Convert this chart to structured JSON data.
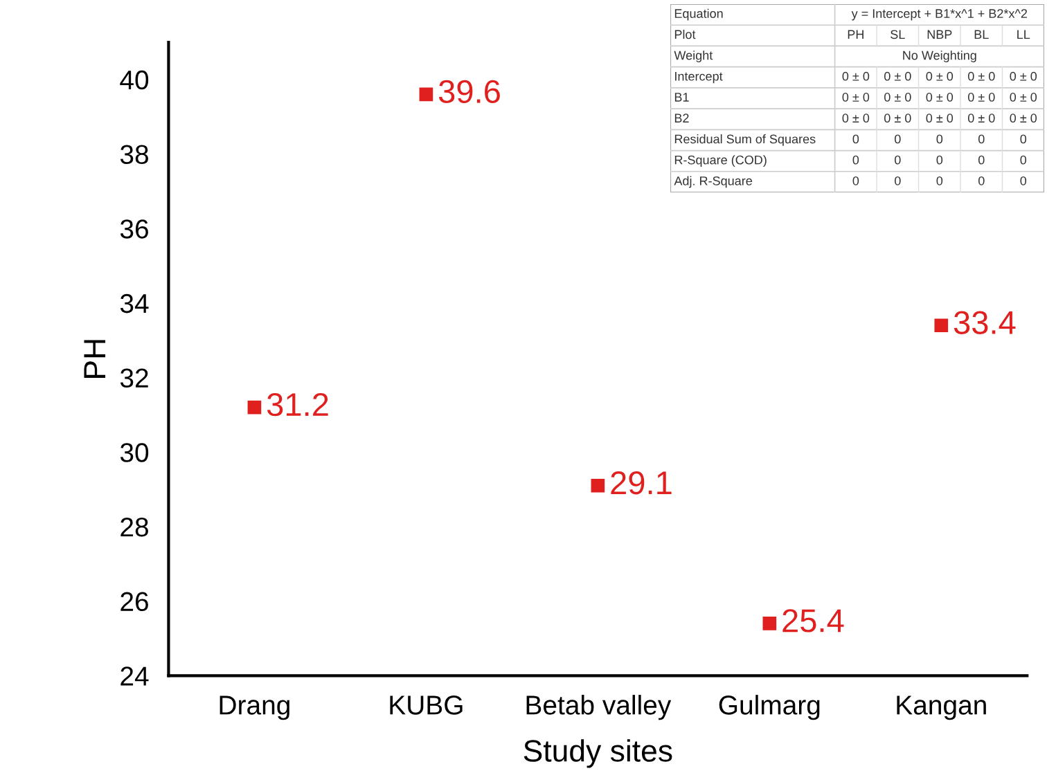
{
  "chart_data": {
    "type": "scatter",
    "xlabel": "Study sites",
    "ylabel": "PH",
    "categories": [
      "Drang",
      "KUBG",
      "Betab valley",
      "Gulmarg",
      "Kangan"
    ],
    "series": [
      {
        "color": "#e0201f",
        "values": [
          31.2,
          39.6,
          29.1,
          25.4,
          33.4
        ]
      }
    ],
    "marker": "square",
    "data_labels": true,
    "grid": false,
    "ylim": [
      24,
      41
    ],
    "yticks": [
      24,
      26,
      28,
      30,
      32,
      34,
      36,
      38,
      40
    ],
    "annotations": [
      "Equation",
      "y = Intercept + B1*x^1 + B2*x^2",
      "Plot",
      "PH",
      "SL",
      "NBP",
      "BL",
      "LL",
      "Weight",
      "No Weighting",
      "Intercept",
      "0 ± 0",
      "0 ± 0",
      "0 ± 0",
      "0 ± 0",
      "0 ± 0",
      "B1",
      "0 ± 0",
      "0 ± 0",
      "0 ± 0",
      "0 ± 0",
      "0 ± 0",
      "B2",
      "0 ± 0",
      "0 ± 0",
      "0 ± 0",
      "0 ± 0",
      "0 ± 0",
      "Residual Sum of Squares",
      "0",
      "0",
      "0",
      "0",
      "0",
      "R-Square (COD)",
      "0",
      "0",
      "0",
      "0",
      "0",
      "Adj. R-Square",
      "0",
      "0",
      "0",
      "0",
      "0"
    ]
  }
}
